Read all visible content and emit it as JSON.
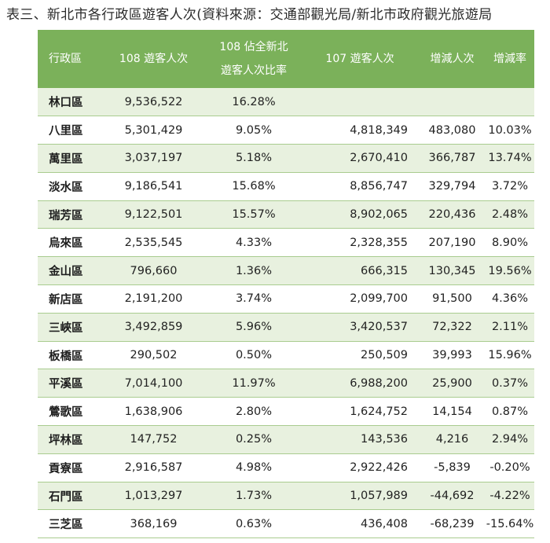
{
  "caption": "表三、新北市各行政區遊客人次(資料來源：交通部觀光局/新北市政府觀光旅遊局",
  "table": {
    "headers": {
      "district": "行政區",
      "visitors_108": "108 遊客人次",
      "share_108_line1": "108 佔全新北",
      "share_108_line2": "遊客人次比率",
      "visitors_107": "107 遊客人次",
      "change": "增減人次",
      "change_rate": "增減率"
    },
    "rows": [
      {
        "district": "林口區",
        "visitors_108": "9,536,522",
        "share_108": "16.28%",
        "visitors_107": "",
        "change": "",
        "change_rate": ""
      },
      {
        "district": "八里區",
        "visitors_108": "5,301,429",
        "share_108": "9.05%",
        "visitors_107": "4,818,349",
        "change": "483,080",
        "change_rate": "10.03%"
      },
      {
        "district": "萬里區",
        "visitors_108": "3,037,197",
        "share_108": "5.18%",
        "visitors_107": "2,670,410",
        "change": "366,787",
        "change_rate": "13.74%"
      },
      {
        "district": "淡水區",
        "visitors_108": "9,186,541",
        "share_108": "15.68%",
        "visitors_107": "8,856,747",
        "change": "329,794",
        "change_rate": "3.72%"
      },
      {
        "district": "瑞芳區",
        "visitors_108": "9,122,501",
        "share_108": "15.57%",
        "visitors_107": "8,902,065",
        "change": "220,436",
        "change_rate": "2.48%"
      },
      {
        "district": "烏來區",
        "visitors_108": "2,535,545",
        "share_108": "4.33%",
        "visitors_107": "2,328,355",
        "change": "207,190",
        "change_rate": "8.90%"
      },
      {
        "district": "金山區",
        "visitors_108": "796,660",
        "share_108": "1.36%",
        "visitors_107": "666,315",
        "change": "130,345",
        "change_rate": "19.56%"
      },
      {
        "district": "新店區",
        "visitors_108": "2,191,200",
        "share_108": "3.74%",
        "visitors_107": "2,099,700",
        "change": "91,500",
        "change_rate": "4.36%"
      },
      {
        "district": "三峽區",
        "visitors_108": "3,492,859",
        "share_108": "5.96%",
        "visitors_107": "3,420,537",
        "change": "72,322",
        "change_rate": "2.11%"
      },
      {
        "district": "板橋區",
        "visitors_108": "290,502",
        "share_108": "0.50%",
        "visitors_107": "250,509",
        "change": "39,993",
        "change_rate": "15.96%"
      },
      {
        "district": "平溪區",
        "visitors_108": "7,014,100",
        "share_108": "11.97%",
        "visitors_107": "6,988,200",
        "change": "25,900",
        "change_rate": "0.37%"
      },
      {
        "district": "鶯歌區",
        "visitors_108": "1,638,906",
        "share_108": "2.80%",
        "visitors_107": "1,624,752",
        "change": "14,154",
        "change_rate": "0.87%"
      },
      {
        "district": "坪林區",
        "visitors_108": "147,752",
        "share_108": "0.25%",
        "visitors_107": "143,536",
        "change": "4,216",
        "change_rate": "2.94%"
      },
      {
        "district": "貢寮區",
        "visitors_108": "2,916,587",
        "share_108": "4.98%",
        "visitors_107": "2,922,426",
        "change": "-5,839",
        "change_rate": "-0.20%"
      },
      {
        "district": "石門區",
        "visitors_108": "1,013,297",
        "share_108": "1.73%",
        "visitors_107": "1,057,989",
        "change": "-44,692",
        "change_rate": "-4.22%"
      },
      {
        "district": "三芝區",
        "visitors_108": "368,169",
        "share_108": "0.63%",
        "visitors_107": "436,408",
        "change": "-68,239",
        "change_rate": "-15.64%"
      }
    ]
  },
  "colors": {
    "header_bg": "#7bb15a",
    "row_alt_bg": "#e8f1df",
    "row_border": "#a9cc8f"
  }
}
